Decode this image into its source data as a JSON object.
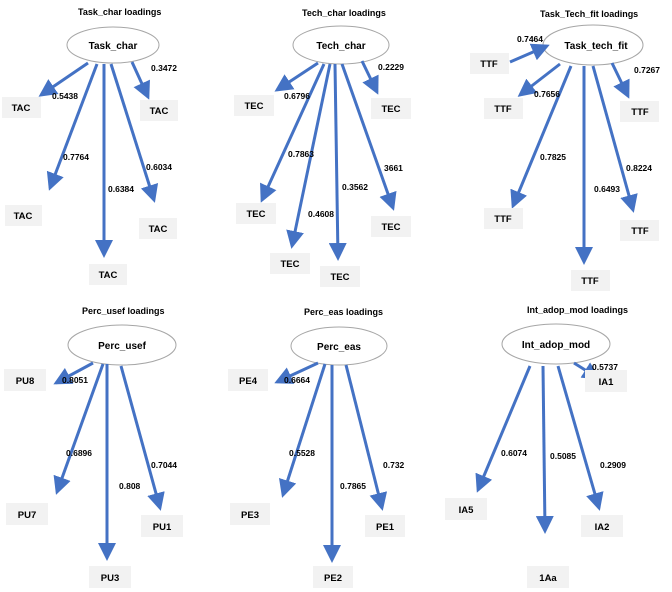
{
  "colors": {
    "arrow": "#4472C4",
    "box": "#f2f2f2",
    "ellipse_stroke": "#a6a6a6"
  },
  "panels": [
    {
      "title": "Task_char loadings",
      "latent": "Task_char",
      "indicators": [
        {
          "label": "TAC",
          "loading": "0.5438"
        },
        {
          "label": "TAC",
          "loading": "0.7764"
        },
        {
          "label": "TAC",
          "loading": "0.6384"
        },
        {
          "label": "TAC",
          "loading": "0.6034"
        },
        {
          "label": "TAC",
          "loading": "0.3472"
        }
      ]
    },
    {
      "title": "Tech_char loadings",
      "latent": "Tech_char",
      "indicators": [
        {
          "label": "TEC",
          "loading": "0.6796"
        },
        {
          "label": "TEC",
          "loading": "0.7863"
        },
        {
          "label": "TEC",
          "loading": "0.4608"
        },
        {
          "label": "TEC",
          "loading": "0.3562"
        },
        {
          "label": "TEC",
          "loading": "3661"
        },
        {
          "label": "TEC",
          "loading": "0.2229"
        }
      ]
    },
    {
      "title": "Task_Tech_fit loadings",
      "latent": "Task_tech_fit",
      "indicators": [
        {
          "label": "TTF",
          "loading": "0.7464"
        },
        {
          "label": "TTF",
          "loading": "0.7656"
        },
        {
          "label": "TTF",
          "loading": "0.7825"
        },
        {
          "label": "TTF",
          "loading": "0.6493"
        },
        {
          "label": "TTF",
          "loading": "0.8224"
        },
        {
          "label": "TTF",
          "loading": "0.7267"
        }
      ]
    },
    {
      "title": "Perc_usef loadings",
      "latent": "Perc_usef",
      "indicators": [
        {
          "label": "PU8",
          "loading": "0.8051"
        },
        {
          "label": "PU7",
          "loading": "0.6896"
        },
        {
          "label": "PU3",
          "loading": "0.808"
        },
        {
          "label": "PU1",
          "loading": "0.7044"
        }
      ]
    },
    {
      "title": "Perc_eas loadings",
      "latent": "Perc_eas",
      "indicators": [
        {
          "label": "PE4",
          "loading": "0.6664"
        },
        {
          "label": "PE3",
          "loading": "0.5528"
        },
        {
          "label": "PE2",
          "loading": "0.7865"
        },
        {
          "label": "PE1",
          "loading": "0.732"
        }
      ]
    },
    {
      "title": "Int_adop_mod loadings",
      "latent": "Int_adop_mod",
      "indicators": [
        {
          "label": "IA5",
          "loading": "0.6074"
        },
        {
          "label": "1Aa",
          "loading": "0.5085"
        },
        {
          "label": "IA2",
          "loading": "0.2909"
        },
        {
          "label": "IA1",
          "loading": "0.5737"
        }
      ]
    }
  ]
}
